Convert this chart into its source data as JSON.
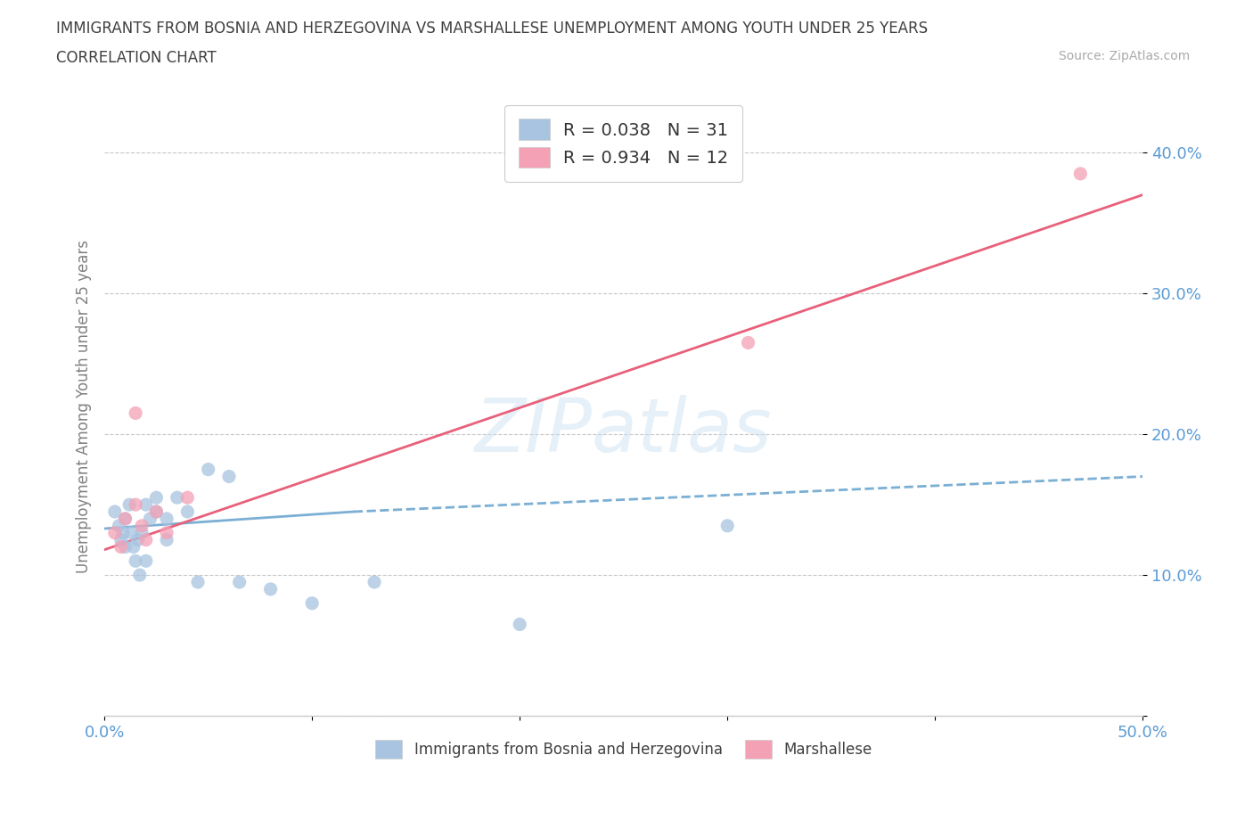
{
  "title_line1": "IMMIGRANTS FROM BOSNIA AND HERZEGOVINA VS MARSHALLESE UNEMPLOYMENT AMONG YOUTH UNDER 25 YEARS",
  "title_line2": "CORRELATION CHART",
  "source_text": "Source: ZipAtlas.com",
  "ylabel": "Unemployment Among Youth under 25 years",
  "xlim": [
    0,
    0.5
  ],
  "ylim": [
    0,
    0.44
  ],
  "xticks": [
    0.0,
    0.1,
    0.2,
    0.3,
    0.4,
    0.5
  ],
  "yticks": [
    0.0,
    0.1,
    0.2,
    0.3,
    0.4
  ],
  "ytick_labels": [
    "",
    "10.0%",
    "20.0%",
    "30.0%",
    "40.0%"
  ],
  "xtick_labels": [
    "0.0%",
    "",
    "",
    "",
    "",
    "50.0%"
  ],
  "color_blue": "#a8c4e0",
  "color_pink": "#f4a0b5",
  "line_blue": "#7bafd4",
  "line_pink": "#e8607a",
  "legend_R_blue": "R = 0.038",
  "legend_N_blue": "N = 31",
  "legend_R_pink": "R = 0.934",
  "legend_N_pink": "N = 12",
  "label_blue": "Immigrants from Bosnia and Herzegovina",
  "label_pink": "Marshallese",
  "blue_scatter_x": [
    0.005,
    0.007,
    0.008,
    0.009,
    0.01,
    0.01,
    0.012,
    0.013,
    0.014,
    0.015,
    0.016,
    0.017,
    0.018,
    0.02,
    0.02,
    0.022,
    0.025,
    0.025,
    0.03,
    0.03,
    0.035,
    0.04,
    0.045,
    0.05,
    0.06,
    0.065,
    0.08,
    0.1,
    0.13,
    0.2,
    0.3
  ],
  "blue_scatter_y": [
    0.145,
    0.135,
    0.125,
    0.13,
    0.12,
    0.14,
    0.15,
    0.13,
    0.12,
    0.11,
    0.125,
    0.1,
    0.13,
    0.11,
    0.15,
    0.14,
    0.145,
    0.155,
    0.14,
    0.125,
    0.155,
    0.145,
    0.095,
    0.175,
    0.17,
    0.095,
    0.09,
    0.08,
    0.095,
    0.065,
    0.135
  ],
  "pink_scatter_x": [
    0.005,
    0.008,
    0.01,
    0.015,
    0.018,
    0.02,
    0.025,
    0.03,
    0.015,
    0.04,
    0.31,
    0.47
  ],
  "pink_scatter_y": [
    0.13,
    0.12,
    0.14,
    0.15,
    0.135,
    0.125,
    0.145,
    0.13,
    0.215,
    0.155,
    0.265,
    0.385
  ],
  "blue_trend_x": [
    0.0,
    0.12,
    0.5
  ],
  "blue_trend_y": [
    0.133,
    0.145,
    0.17
  ],
  "pink_trend_x": [
    0.0,
    0.5
  ],
  "pink_trend_y": [
    0.118,
    0.37
  ],
  "watermark": "ZIPatlas",
  "background_color": "#ffffff",
  "tick_color": "#5b9bd5",
  "grid_color": "#c8c8c8",
  "title_color": "#404040",
  "axis_label_color": "#808080"
}
